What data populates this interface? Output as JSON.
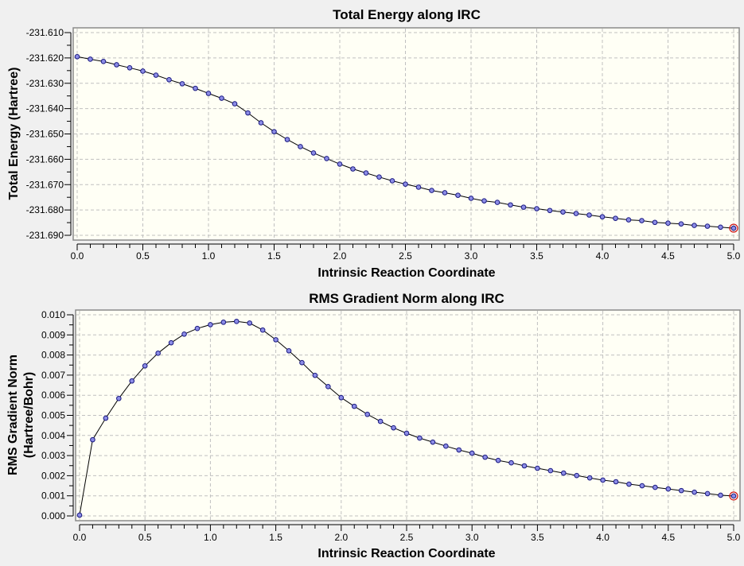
{
  "chart_data": [
    {
      "type": "line",
      "title": "Total Energy along IRC",
      "xlabel": "Intrinsic Reaction Coordinate",
      "ylabel": "Total Energy (Hartree)",
      "xlim": [
        0,
        5
      ],
      "ylim": [
        -231.69,
        -231.61
      ],
      "xticks": [
        "0.0",
        "0.5",
        "1.0",
        "1.5",
        "2.0",
        "2.5",
        "3.0",
        "3.5",
        "4.0",
        "4.5",
        "5.0"
      ],
      "yticks": [
        "-231.610",
        "-231.620",
        "-231.630",
        "-231.640",
        "-231.650",
        "-231.660",
        "-231.670",
        "-231.680",
        "-231.690"
      ],
      "grid": true,
      "x": [
        0.0,
        0.1,
        0.2,
        0.3,
        0.4,
        0.5,
        0.6,
        0.7,
        0.8,
        0.9,
        1.0,
        1.1,
        1.2,
        1.3,
        1.4,
        1.5,
        1.6,
        1.7,
        1.8,
        1.9,
        2.0,
        2.1,
        2.2,
        2.3,
        2.4,
        2.5,
        2.6,
        2.7,
        2.8,
        2.9,
        3.0,
        3.1,
        3.2,
        3.3,
        3.4,
        3.5,
        3.6,
        3.7,
        3.8,
        3.9,
        4.0,
        4.1,
        4.2,
        4.3,
        4.4,
        4.5,
        4.6,
        4.7,
        4.8,
        4.9,
        5.0
      ],
      "y": [
        -231.6195,
        -231.6205,
        -231.6214,
        -231.6227,
        -231.6239,
        -231.6252,
        -231.6268,
        -231.6286,
        -231.6302,
        -231.632,
        -231.634,
        -231.6359,
        -231.6381,
        -231.6417,
        -231.6456,
        -231.6491,
        -231.6522,
        -231.655,
        -231.6575,
        -231.6597,
        -231.6619,
        -231.6638,
        -231.6654,
        -231.667,
        -231.6685,
        -231.6698,
        -231.671,
        -231.6723,
        -231.6732,
        -231.6742,
        -231.6754,
        -231.6764,
        -231.677,
        -231.678,
        -231.6789,
        -231.6795,
        -231.6802,
        -231.6808,
        -231.6814,
        -231.682,
        -231.6827,
        -231.6833,
        -231.6839,
        -231.6842,
        -231.6849,
        -231.6852,
        -231.6855,
        -231.6861,
        -231.6864,
        -231.6868,
        -231.6872
      ],
      "highlight_last": true
    },
    {
      "type": "line",
      "title": "RMS Gradient Norm along IRC",
      "xlabel": "Intrinsic Reaction Coordinate",
      "ylabel": [
        "RMS Gradient Norm",
        "(Hartree/Bohr)"
      ],
      "xlim": [
        0,
        5
      ],
      "ylim": [
        0,
        0.01
      ],
      "xticks": [
        "0.0",
        "0.5",
        "1.0",
        "1.5",
        "2.0",
        "2.5",
        "3.0",
        "3.5",
        "4.0",
        "4.5",
        "5.0"
      ],
      "yticks": [
        "0.010",
        "0.009",
        "0.008",
        "0.007",
        "0.006",
        "0.005",
        "0.004",
        "0.003",
        "0.002",
        "0.001",
        "0.000"
      ],
      "grid": true,
      "x": [
        0.0,
        0.1,
        0.2,
        0.3,
        0.4,
        0.5,
        0.6,
        0.7,
        0.8,
        0.9,
        1.0,
        1.1,
        1.2,
        1.3,
        1.4,
        1.5,
        1.6,
        1.7,
        1.8,
        1.9,
        2.0,
        2.1,
        2.2,
        2.3,
        2.4,
        2.5,
        2.6,
        2.7,
        2.8,
        2.9,
        3.0,
        3.1,
        3.2,
        3.3,
        3.4,
        3.5,
        3.6,
        3.7,
        3.8,
        3.9,
        4.0,
        4.1,
        4.2,
        4.3,
        4.4,
        4.5,
        4.6,
        4.7,
        4.8,
        4.9,
        5.0
      ],
      "y": [
        4e-05,
        0.00379,
        0.00486,
        0.00584,
        0.00671,
        0.00746,
        0.00809,
        0.00861,
        0.00904,
        0.00932,
        0.00951,
        0.00963,
        0.00967,
        0.00959,
        0.00924,
        0.00876,
        0.00821,
        0.00762,
        0.00699,
        0.00643,
        0.00588,
        0.00545,
        0.00505,
        0.0047,
        0.00438,
        0.00411,
        0.00387,
        0.00367,
        0.00347,
        0.00328,
        0.00312,
        0.00292,
        0.00276,
        0.00264,
        0.00249,
        0.00237,
        0.00225,
        0.00213,
        0.00201,
        0.00189,
        0.00178,
        0.0017,
        0.00158,
        0.0015,
        0.00142,
        0.00134,
        0.00126,
        0.00118,
        0.00111,
        0.00103,
        0.00099
      ],
      "highlight_last": true
    }
  ],
  "colors": {
    "background": "#f0f0f0",
    "plot_bg": "#fffff5",
    "grid": "#c0c0c0",
    "line": "#000000",
    "marker_fill": "#8c8ce6",
    "marker_stroke": "#1a1a80",
    "highlight": "#d01010"
  }
}
